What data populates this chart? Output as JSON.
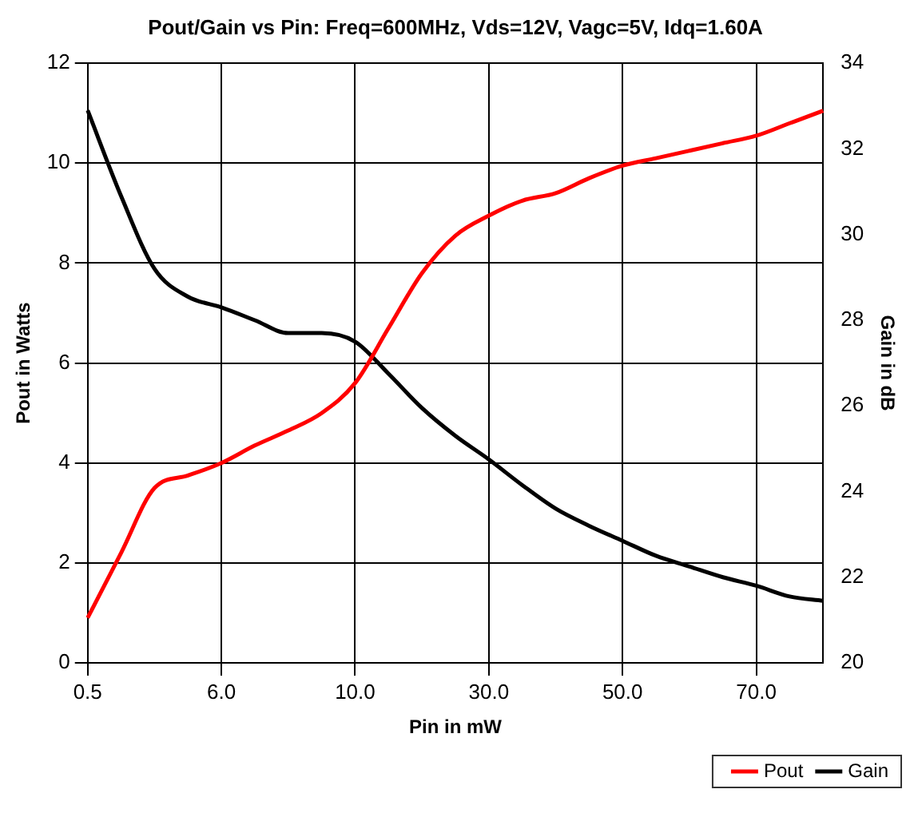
{
  "chart_data": {
    "type": "line",
    "title": "Pout/Gain vs Pin: Freq=600MHz, Vds=12V, Vagc=5V, Idq=1.60A",
    "xlabel": "Pin in mW",
    "ylabel": "Pout in Watts",
    "y2label": "Gain in dB",
    "categories": [
      "0.5",
      null,
      null,
      null,
      "6.0",
      null,
      null,
      null,
      "10.0",
      null,
      null,
      null,
      "30.0",
      null,
      null,
      null,
      "50.0",
      null,
      null,
      null,
      "70.0",
      null,
      null
    ],
    "series": [
      {
        "name": "Pout",
        "color": "#ff0000",
        "values": [
          0.9,
          2.2,
          3.5,
          3.75,
          4.0,
          4.35,
          4.65,
          5.0,
          5.6,
          6.7,
          7.8,
          8.55,
          8.95,
          9.25,
          9.4,
          9.7,
          9.95,
          10.1,
          10.25,
          10.4,
          10.55,
          10.8,
          11.05
        ]
      },
      {
        "name": "Gain",
        "color": "#000000",
        "axis": "y2",
        "values": [
          32.9,
          30.9,
          29.2,
          28.55,
          28.3,
          28.0,
          27.7,
          27.7,
          27.5,
          26.75,
          25.95,
          25.3,
          24.75,
          24.15,
          23.6,
          23.2,
          22.85,
          22.5,
          22.25,
          22.0,
          21.8,
          21.55,
          21.45
        ]
      }
    ],
    "ylim": [
      0,
      12
    ],
    "yticks": [
      0,
      2,
      4,
      6,
      8,
      10,
      12
    ],
    "y2lim": [
      20,
      34
    ],
    "y2ticks": [
      20,
      22,
      24,
      26,
      28,
      30,
      32,
      34
    ],
    "grid": true,
    "legend": "bottom right",
    "marker": "none",
    "line_style": "solid"
  }
}
